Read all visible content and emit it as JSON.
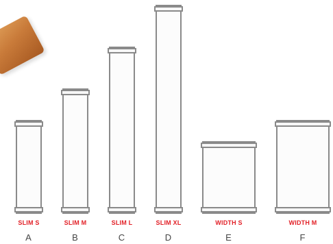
{
  "products": [
    {
      "size": "SLIM S",
      "letter": "A"
    },
    {
      "size": "SLIM M",
      "letter": "B"
    },
    {
      "size": "SLIM L",
      "letter": "C"
    },
    {
      "size": "SLIM XL",
      "letter": "D"
    },
    {
      "size": "WIDTH S",
      "letter": "E"
    },
    {
      "size": "WIDTH M",
      "letter": "F"
    }
  ],
  "colors": {
    "label_red": "#e21f26",
    "outline_gray": "#8a8a8a"
  }
}
